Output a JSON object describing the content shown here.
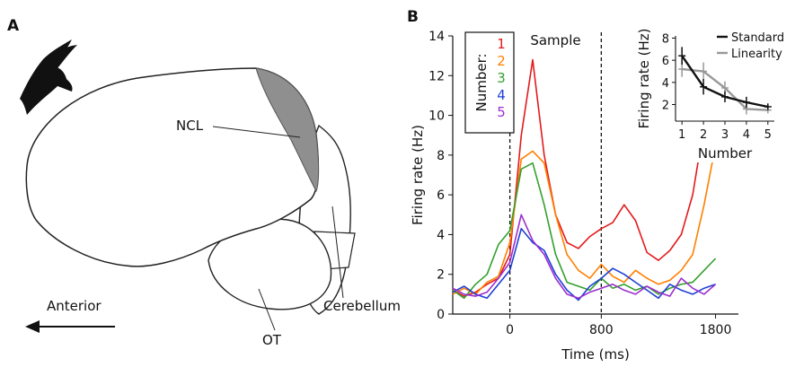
{
  "panel_a": {
    "letter": "A",
    "labels": {
      "ncl": "NCL",
      "anterior": "Anterior",
      "cerebellum": "Cerebellum",
      "ot": "OT"
    }
  },
  "panel_b": {
    "letter": "B"
  },
  "chart_data": [
    {
      "type": "line",
      "title": "",
      "annotation": "Sample",
      "xlabel": "Time (ms)",
      "ylabel": "Firing rate (Hz)",
      "xlim": [
        -500,
        2000
      ],
      "ylim": [
        0,
        14
      ],
      "x_ticks": [
        0,
        800,
        1800
      ],
      "y_ticks": [
        0,
        2,
        4,
        6,
        8,
        10,
        12,
        14
      ],
      "sample_period_ms": [
        0,
        800
      ],
      "legend_title": "Number:",
      "legend_placement": "top-left",
      "x": [
        -500,
        -400,
        -300,
        -200,
        -100,
        0,
        100,
        200,
        300,
        400,
        500,
        600,
        700,
        800,
        900,
        1000,
        1100,
        1200,
        1300,
        1400,
        1500,
        1600,
        1700,
        1800
      ],
      "series": [
        {
          "name": "1",
          "color": "#e31a1c",
          "values": [
            1.2,
            0.9,
            1.1,
            1.5,
            1.8,
            3.0,
            9.0,
            12.8,
            8.0,
            5.0,
            3.6,
            3.3,
            3.9,
            4.3,
            4.6,
            5.5,
            4.7,
            3.1,
            2.7,
            3.2,
            4.0,
            6.0,
            9.5,
            13.5
          ]
        },
        {
          "name": "2",
          "color": "#ff7f00",
          "values": [
            1.0,
            1.3,
            1.0,
            1.6,
            1.9,
            3.6,
            7.8,
            8.2,
            7.6,
            5.0,
            3.0,
            2.2,
            1.8,
            2.5,
            1.9,
            1.6,
            2.2,
            1.8,
            1.5,
            1.7,
            2.2,
            3.0,
            5.5,
            8.5
          ]
        },
        {
          "name": "3",
          "color": "#33a02c",
          "values": [
            1.2,
            0.8,
            1.5,
            2.0,
            3.5,
            4.2,
            7.3,
            7.6,
            5.5,
            3.0,
            1.6,
            1.4,
            1.2,
            1.8,
            1.3,
            1.5,
            1.2,
            1.4,
            1.0,
            1.3,
            1.5,
            1.6,
            2.2,
            2.8
          ]
        },
        {
          "name": "4",
          "color": "#1f3fd6",
          "values": [
            1.1,
            1.4,
            1.0,
            0.8,
            1.5,
            2.2,
            4.3,
            3.6,
            3.2,
            2.0,
            1.2,
            0.7,
            1.4,
            1.8,
            2.3,
            2.0,
            1.6,
            1.2,
            0.8,
            1.5,
            1.2,
            1.0,
            1.3,
            1.5
          ]
        },
        {
          "name": "5",
          "color": "#9d2fd0",
          "values": [
            1.3,
            1.0,
            0.9,
            1.1,
            1.8,
            2.6,
            5.0,
            3.7,
            3.0,
            1.8,
            1.0,
            0.8,
            1.1,
            1.3,
            1.5,
            1.2,
            1.0,
            1.4,
            1.1,
            0.9,
            1.8,
            1.3,
            1.0,
            1.5
          ]
        }
      ]
    },
    {
      "type": "line",
      "title": "",
      "xlabel": "Number",
      "ylabel": "Firing rate (Hz)",
      "xlim": [
        0.7,
        5.3
      ],
      "ylim": [
        0.5,
        8.2
      ],
      "x_ticks": [
        1,
        2,
        3,
        4,
        5
      ],
      "y_ticks": [
        2,
        4,
        6,
        8
      ],
      "legend_placement": "top-right",
      "categories": [
        1,
        2,
        3,
        4,
        5
      ],
      "series": [
        {
          "name": "Standard",
          "color": "#111111",
          "values": [
            6.4,
            3.6,
            2.7,
            2.2,
            1.8
          ],
          "error": [
            0.8,
            0.7,
            0.5,
            0.5,
            0.3
          ]
        },
        {
          "name": "Linearity",
          "color": "#999999",
          "values": [
            5.2,
            5.0,
            3.5,
            1.6,
            1.5
          ],
          "error": [
            0.7,
            0.8,
            0.6,
            0.5,
            0.3
          ]
        }
      ]
    }
  ]
}
